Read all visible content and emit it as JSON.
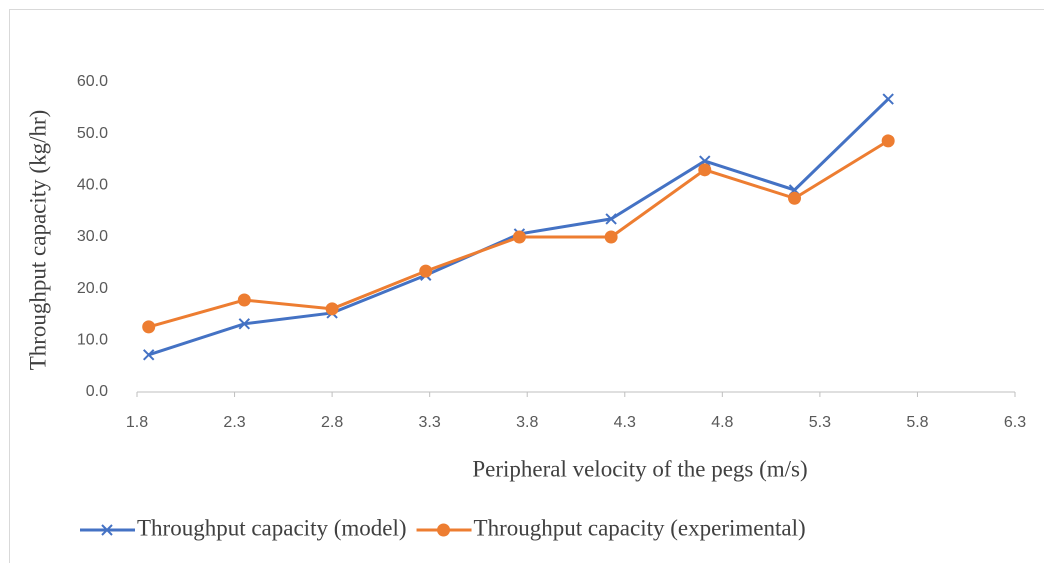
{
  "chart_data": {
    "type": "line",
    "x_label": "Peripheral velocity of the pegs (m/s)",
    "y_label": "Throughput capacity (kg/hr)",
    "x": [
      1.86,
      2.35,
      2.8,
      3.28,
      3.76,
      4.23,
      4.71,
      5.17,
      5.65
    ],
    "series": [
      {
        "name": "Throughput capacity (model)",
        "color": "#4472c4",
        "marker": "x",
        "values": [
          7.2,
          13.2,
          15.3,
          22.6,
          30.6,
          33.5,
          44.7,
          39.1,
          56.7
        ]
      },
      {
        "name": "Throughput capacity (experimental)",
        "color": "#ed7d31",
        "marker": "circle",
        "values": [
          12.6,
          17.8,
          16.1,
          23.4,
          30.0,
          30.0,
          43.0,
          37.5,
          48.6
        ]
      }
    ],
    "xlim": [
      1.8,
      6.3
    ],
    "xticks": [
      1.8,
      2.3,
      2.8,
      3.3,
      3.8,
      4.3,
      4.8,
      5.3,
      5.8,
      6.3
    ],
    "ylim": [
      0,
      60
    ],
    "yticks": [
      {
        "value": 0,
        "label": "0.0"
      },
      {
        "value": 10,
        "label": "10.0"
      },
      {
        "value": 20,
        "label": "20.0"
      },
      {
        "value": 30,
        "label": "30.0"
      },
      {
        "value": 40,
        "label": "40.0"
      },
      {
        "value": 50,
        "label": "50.0"
      },
      {
        "value": 60,
        "label": "60.0"
      }
    ],
    "grid": false,
    "legend": "bottom"
  }
}
